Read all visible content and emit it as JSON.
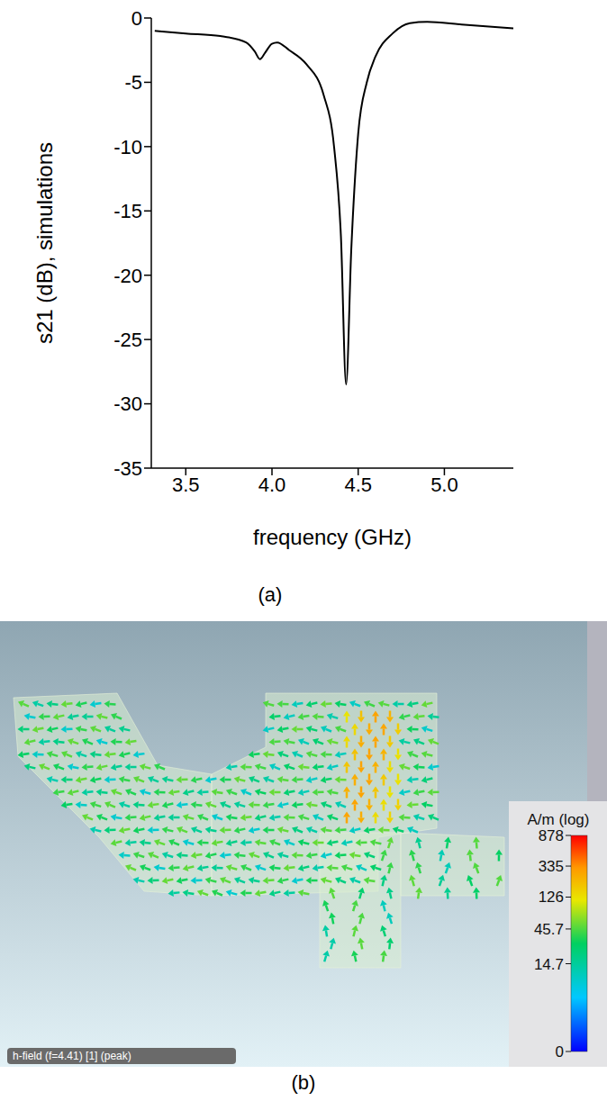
{
  "chart_data": [
    {
      "type": "line",
      "caption": "(a)",
      "x_label": "frequency (GHz)",
      "y_label": "s21 (dB), simulations",
      "x": [
        3.32,
        3.5,
        3.7,
        3.85,
        3.9,
        3.93,
        3.96,
        4.0,
        4.03,
        4.1,
        4.2,
        4.3,
        4.36,
        4.4,
        4.43,
        4.46,
        4.5,
        4.55,
        4.6,
        4.7,
        4.8,
        4.9,
        5.1,
        5.4
      ],
      "values": [
        -1.0,
        -1.2,
        -1.4,
        -1.9,
        -2.6,
        -3.2,
        -2.7,
        -2.0,
        -1.9,
        -2.5,
        -3.6,
        -6,
        -10,
        -17,
        -28.5,
        -18,
        -9,
        -5,
        -3,
        -1.2,
        -0.4,
        -0.3,
        -0.5,
        -0.8
      ],
      "color": "#000000",
      "xlim": [
        3.3,
        5.4
      ],
      "xticks": [
        3.5,
        {
          "value": 4.0,
          "label": "4.0"
        },
        4.5,
        {
          "value": 5.0,
          "label": "5.0"
        }
      ],
      "ylim": [
        -35,
        0
      ],
      "yticks": [
        -35,
        -30,
        -25,
        -20,
        -15,
        -10,
        -5,
        0
      ],
      "grid": false
    },
    {
      "type": "field_map",
      "caption": "(b)",
      "annotation": "h-field (f=4.41) [1] (peak)",
      "colorbar": {
        "label": "A/m (log)",
        "range": [
          0,
          878
        ],
        "ticks": [
          878,
          335,
          126,
          45.7,
          14.7,
          0
        ]
      }
    }
  ]
}
